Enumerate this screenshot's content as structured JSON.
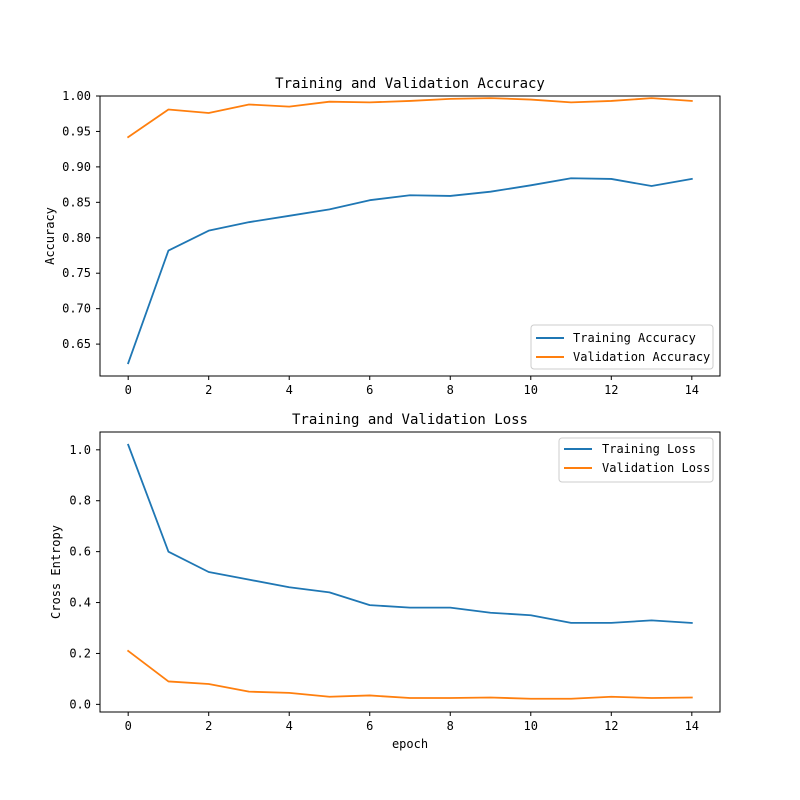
{
  "colors": {
    "training": "#1f77b4",
    "validation": "#ff7f0e"
  },
  "chart_data": [
    {
      "type": "line",
      "title": "Training and Validation Accuracy",
      "xlabel": "",
      "ylabel": "Accuracy",
      "xlim": [
        -0.7,
        14.7
      ],
      "ylim": [
        0.605,
        1.0
      ],
      "xticks": [
        0,
        2,
        4,
        6,
        8,
        10,
        12,
        14
      ],
      "yticks": [
        0.65,
        0.7,
        0.75,
        0.8,
        0.85,
        0.9,
        0.95,
        1.0
      ],
      "ytick_labels": [
        "0.65",
        "0.70",
        "0.75",
        "0.80",
        "0.85",
        "0.90",
        "0.95",
        "1.00"
      ],
      "x": [
        0,
        1,
        2,
        3,
        4,
        5,
        6,
        7,
        8,
        9,
        10,
        11,
        12,
        13,
        14
      ],
      "legend_position": "lower-right",
      "grid": false,
      "series": [
        {
          "name": "Training Accuracy",
          "color": "#1f77b4",
          "values": [
            0.623,
            0.782,
            0.81,
            0.822,
            0.831,
            0.84,
            0.853,
            0.86,
            0.859,
            0.865,
            0.874,
            0.884,
            0.883,
            0.873,
            0.883
          ]
        },
        {
          "name": "Validation Accuracy",
          "color": "#ff7f0e",
          "values": [
            0.942,
            0.981,
            0.976,
            0.988,
            0.985,
            0.992,
            0.991,
            0.993,
            0.996,
            0.997,
            0.995,
            0.991,
            0.993,
            0.997,
            0.993
          ]
        }
      ]
    },
    {
      "type": "line",
      "title": "Training and Validation Loss",
      "xlabel": "epoch",
      "ylabel": "Cross Entropy",
      "xlim": [
        -0.7,
        14.7
      ],
      "ylim": [
        -0.03,
        1.07
      ],
      "xticks": [
        0,
        2,
        4,
        6,
        8,
        10,
        12,
        14
      ],
      "yticks": [
        0.0,
        0.2,
        0.4,
        0.6,
        0.8,
        1.0
      ],
      "ytick_labels": [
        "0.0",
        "0.2",
        "0.4",
        "0.6",
        "0.8",
        "1.0"
      ],
      "x": [
        0,
        1,
        2,
        3,
        4,
        5,
        6,
        7,
        8,
        9,
        10,
        11,
        12,
        13,
        14
      ],
      "legend_position": "upper-right",
      "grid": false,
      "series": [
        {
          "name": "Training Loss",
          "color": "#1f77b4",
          "values": [
            1.02,
            0.6,
            0.52,
            0.49,
            0.46,
            0.44,
            0.39,
            0.38,
            0.38,
            0.36,
            0.35,
            0.32,
            0.32,
            0.33,
            0.32
          ]
        },
        {
          "name": "Validation Loss",
          "color": "#ff7f0e",
          "values": [
            0.21,
            0.09,
            0.08,
            0.05,
            0.045,
            0.03,
            0.035,
            0.025,
            0.025,
            0.027,
            0.022,
            0.022,
            0.03,
            0.025,
            0.027
          ]
        }
      ]
    }
  ]
}
